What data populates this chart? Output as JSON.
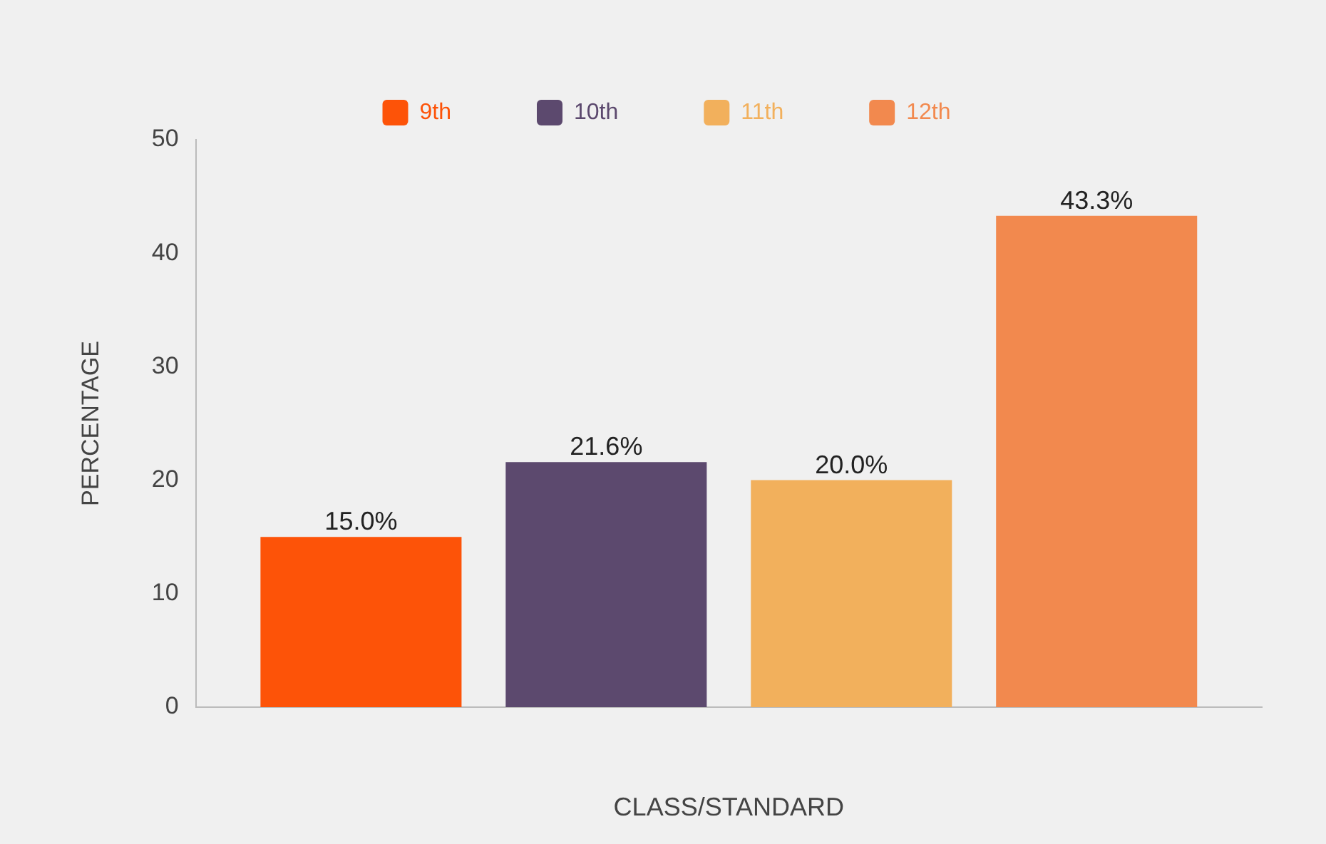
{
  "chart_data": {
    "type": "bar",
    "xlabel": "CLASS/STANDARD",
    "ylabel": "PERCENTAGE",
    "categories": [
      null
    ],
    "series": [
      {
        "name": "9th",
        "color": "#fd5308",
        "values": [
          15.0
        ],
        "value_labels": [
          "15.0%"
        ]
      },
      {
        "name": "10th",
        "color": "#5c496e",
        "values": [
          21.6
        ],
        "value_labels": [
          "21.6%"
        ]
      },
      {
        "name": "11th",
        "color": "#f2b05c",
        "values": [
          20.0
        ],
        "value_labels": [
          "20.0%"
        ]
      },
      {
        "name": "12th",
        "color": "#f2894e",
        "values": [
          43.3
        ],
        "value_labels": [
          "43.3%"
        ]
      }
    ],
    "ylim": [
      0,
      50
    ],
    "yticks": [
      0,
      10,
      20,
      30,
      40,
      50
    ],
    "grid": false,
    "legend": "top"
  }
}
